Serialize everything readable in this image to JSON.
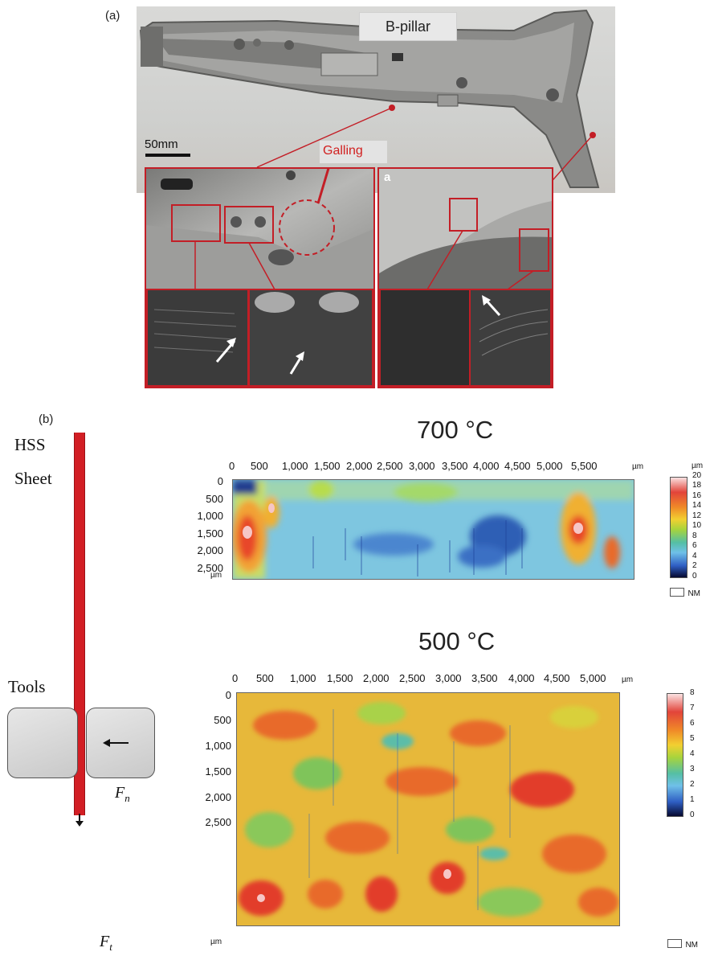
{
  "panel_a": {
    "label": "(a)",
    "title": "B-pillar",
    "scale": "50mm",
    "callout": "Galling",
    "zoom_badge": "a"
  },
  "panel_b": {
    "label": "(b)",
    "sheet_label_1": "HSS",
    "sheet_label_2": "Sheet",
    "tools_label": "Tools",
    "force_normal": "F",
    "force_normal_sub": "n",
    "force_tangent": "F",
    "force_tangent_sub": "t",
    "colors": {
      "sheet": "#d21e24",
      "frame": "#c31e26"
    }
  },
  "maps": [
    {
      "title": "700 °C",
      "x_ticks": [
        "0",
        "500",
        "1,000",
        "1,500",
        "2,000",
        "2,500",
        "3,000",
        "3,500",
        "4,000",
        "4,500",
        "5,000",
        "5,500"
      ],
      "y_ticks": [
        "0",
        "500",
        "1,000",
        "1,500",
        "2,000",
        "2,500"
      ],
      "x_unit": "µm",
      "y_unit": "µm",
      "colorbar_unit": "µm",
      "colorbar_ticks": [
        "20",
        "18",
        "16",
        "14",
        "12",
        "10",
        "8",
        "6",
        "4",
        "2",
        "0"
      ],
      "nm_label": "NM"
    },
    {
      "title": "500 °C",
      "x_ticks": [
        "0",
        "500",
        "1,000",
        "1,500",
        "2,000",
        "2,500",
        "3,000",
        "3,500",
        "4,000",
        "4,500",
        "5,000"
      ],
      "y_ticks": [
        "0",
        "500",
        "1,000",
        "1,500",
        "2,000",
        "2,500"
      ],
      "x_unit": "µm",
      "y_unit": "µm",
      "colorbar_ticks": [
        "8",
        "7",
        "6",
        "5",
        "4",
        "3",
        "2",
        "1",
        "0"
      ],
      "nm_label": "NM"
    }
  ]
}
